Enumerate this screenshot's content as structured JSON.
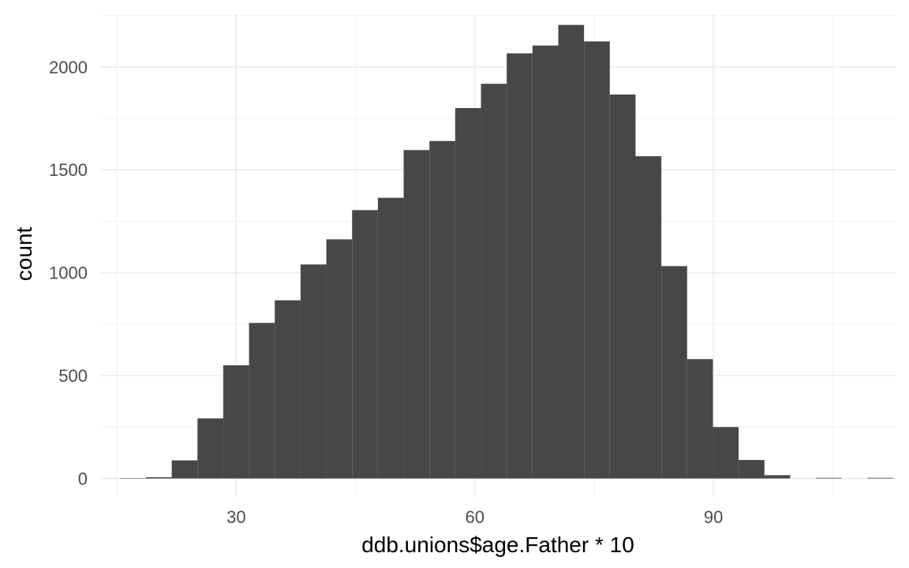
{
  "chart_data": {
    "type": "bar",
    "subtype": "histogram",
    "title": "",
    "xlabel": "ddb.unions$age.Father * 10",
    "ylabel": "count",
    "xlim": [
      12.9,
      113
    ],
    "ylim": [
      -90,
      2260
    ],
    "x_ticks": [
      30,
      60,
      90
    ],
    "x_minor_ticks": [
      15,
      45,
      75,
      105
    ],
    "y_ticks": [
      0,
      500,
      1000,
      1500,
      2000
    ],
    "y_minor_ticks": [
      250,
      750,
      1250,
      1750,
      2250
    ],
    "grid": true,
    "legend": "none",
    "bin_width": 3.24,
    "x": [
      17.03,
      20.27,
      23.51,
      26.75,
      29.99,
      33.23,
      36.47,
      39.71,
      42.95,
      46.19,
      49.43,
      52.67,
      55.91,
      59.15,
      62.39,
      65.63,
      68.87,
      72.11,
      75.35,
      78.59,
      81.83,
      85.07,
      88.31,
      91.55,
      94.79,
      98.03,
      101.27,
      104.51,
      107.75,
      110.99
    ],
    "values": [
      2,
      6,
      88,
      292,
      550,
      756,
      866,
      1040,
      1162,
      1304,
      1364,
      1596,
      1640,
      1800,
      1918,
      2066,
      2104,
      2204,
      2124,
      1866,
      1566,
      1032,
      580,
      250,
      90,
      16,
      0,
      3,
      0,
      3
    ],
    "colors": {
      "bar": "#474747",
      "grid_major": "#ebebeb",
      "grid_minor": "#f3f3f3",
      "tick_label": "#4d4d4d",
      "axis_title": "#000000",
      "background": "#ffffff"
    }
  }
}
